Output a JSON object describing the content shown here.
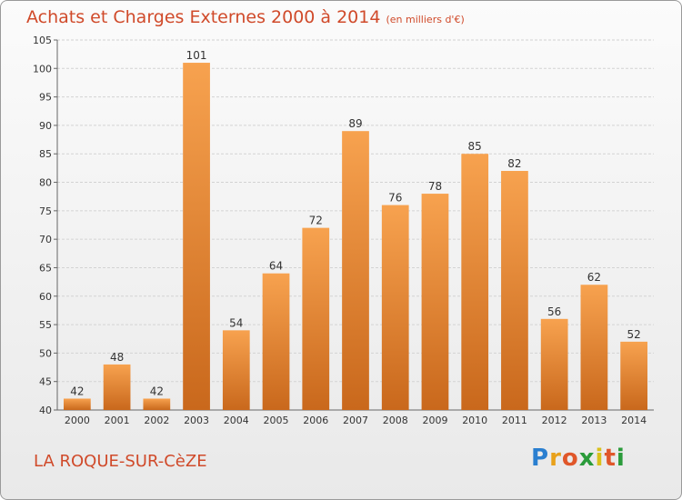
{
  "header": {
    "title": "Achats et Charges Externes 2000 à 2014",
    "unit": "(en milliers d'€)"
  },
  "footer": {
    "commune": "LA ROQUE-SUR-CèZE",
    "logo_letters": [
      "P",
      "r",
      "o",
      "x",
      "i",
      "t",
      "i"
    ],
    "logo_colors": [
      "#2a7fd0",
      "#e8a11b",
      "#e0572a",
      "#2a9b3a",
      "#d9c11b",
      "#e0572a",
      "#2a9b3a"
    ]
  },
  "colors": {
    "bar_light": "#f7a24f",
    "bar_dark": "#c9681c",
    "accent": "#d04a2a"
  },
  "chart_data": {
    "type": "bar",
    "title": "Achats et Charges Externes 2000 à 2014",
    "categories": [
      "2000",
      "2001",
      "2002",
      "2003",
      "2004",
      "2005",
      "2006",
      "2007",
      "2008",
      "2009",
      "2010",
      "2011",
      "2012",
      "2013",
      "2014"
    ],
    "values": [
      42,
      48,
      42,
      101,
      54,
      64,
      72,
      89,
      76,
      78,
      85,
      82,
      56,
      62,
      52
    ],
    "ylim": [
      40,
      105
    ],
    "yticks": [
      40,
      45,
      50,
      55,
      60,
      65,
      70,
      75,
      80,
      85,
      90,
      95,
      100,
      105
    ],
    "grid": true,
    "legend": "none"
  }
}
